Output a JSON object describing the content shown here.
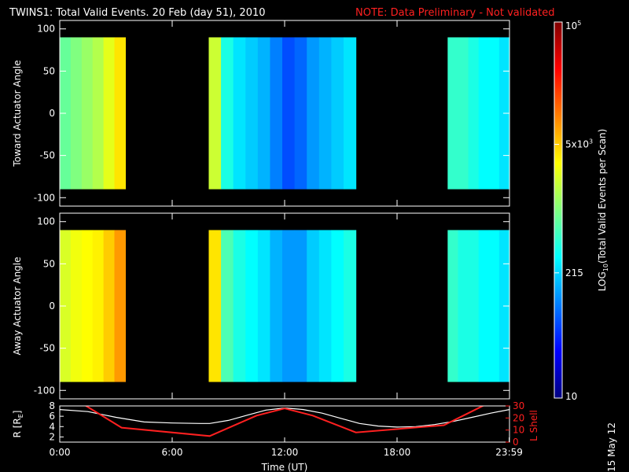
{
  "title": "TWINS1: Total Valid Events. 20 Feb (day  51), 2010",
  "note": "NOTE: Data Preliminary - Not validated",
  "date_stamp": "15 May 12",
  "colors": {
    "background": "#000000",
    "note": "#ff2020",
    "r_line": "#ffffff",
    "l_line": "#ff2020"
  },
  "chart_data": [
    {
      "type": "heatmap",
      "name": "toward",
      "ylabel": "Toward Actuator Angle",
      "ylim": [
        -110,
        110
      ],
      "yticks": [
        100,
        50,
        0,
        -50,
        -100
      ],
      "xlim": [
        0,
        24
      ],
      "data_angle_range": [
        -90,
        90
      ],
      "blocks": [
        {
          "start": 0.0,
          "end": 3.5,
          "log_profile": [
            2.9,
            3.0,
            3.1,
            3.2,
            3.4,
            3.6
          ]
        },
        {
          "start": 7.95,
          "end": 15.8,
          "log_profile": [
            3.3,
            2.6,
            2.4,
            2.3,
            2.2,
            2.0,
            1.8,
            1.9,
            2.1,
            2.2,
            2.3,
            2.4
          ]
        },
        {
          "start": 20.7,
          "end": 24.0,
          "log_profile": [
            2.7,
            2.7,
            2.6,
            2.5,
            2.5,
            2.4
          ]
        }
      ]
    },
    {
      "type": "heatmap",
      "name": "away",
      "ylabel": "Away Actuator Angle",
      "ylim": [
        -110,
        110
      ],
      "yticks": [
        100,
        50,
        0,
        -50,
        -100
      ],
      "xlim": [
        0,
        24
      ],
      "data_angle_range": [
        -90,
        90
      ],
      "blocks": [
        {
          "start": 0.0,
          "end": 3.5,
          "log_profile": [
            3.35,
            3.45,
            3.5,
            3.55,
            3.7,
            3.9
          ]
        },
        {
          "start": 7.95,
          "end": 15.8,
          "log_profile": [
            3.6,
            2.8,
            2.6,
            2.5,
            2.4,
            2.2,
            2.1,
            2.1,
            2.3,
            2.4,
            2.5,
            2.6
          ]
        },
        {
          "start": 20.7,
          "end": 24.0,
          "log_profile": [
            2.7,
            2.6,
            2.6,
            2.5,
            2.5,
            2.4
          ]
        }
      ]
    },
    {
      "type": "line",
      "name": "orbit",
      "ylabel_left": "R [R",
      "ylabel_left_sub": "E",
      "ylabel_left_end": "]",
      "ylabel_right": "L Shell",
      "ylim_left": [
        1,
        8
      ],
      "yticks_left": [
        8,
        6,
        4,
        2
      ],
      "ylim_right": [
        0,
        30
      ],
      "yticks_right": [
        30,
        20,
        10,
        0
      ],
      "xlabel": "Time (UT)",
      "xticks": [
        {
          "value": 0,
          "label": "0:00"
        },
        {
          "value": 6,
          "label": "6:00"
        },
        {
          "value": 12,
          "label": "12:00"
        },
        {
          "value": 18,
          "label": "18:00"
        },
        {
          "value": 23.983,
          "label": "23:59"
        }
      ],
      "series": [
        {
          "axis": "left",
          "color": "#ffffff",
          "x": [
            0,
            1.5,
            3,
            4.5,
            6,
            7.5,
            8,
            9,
            10,
            11,
            12,
            13,
            14,
            15,
            16,
            17,
            18,
            19,
            20,
            21,
            22,
            23,
            24
          ],
          "y": [
            7.3,
            6.9,
            5.8,
            4.9,
            4.7,
            4.6,
            4.6,
            5.2,
            6.2,
            7.2,
            7.6,
            7.3,
            6.6,
            5.6,
            4.6,
            4.1,
            3.9,
            4.0,
            4.4,
            5.0,
            5.8,
            6.6,
            7.3
          ]
        },
        {
          "axis": "right",
          "color": "#ff2020",
          "x": [
            1.3,
            3.3,
            8,
            10.5,
            12,
            13.5,
            15.8,
            20.5,
            21.8,
            22.7
          ],
          "y": [
            31,
            12,
            5,
            22,
            28,
            22,
            8,
            14,
            24,
            31
          ]
        }
      ]
    }
  ],
  "colorbar": {
    "label": "LOG",
    "label_sub": "10",
    "label_end": "(Total Valid  Events per Scan)",
    "ticks": [
      {
        "log": 5,
        "base": "10",
        "exp": "5"
      },
      {
        "log": 3.699,
        "base": "5x10",
        "exp": "3"
      },
      {
        "log": 2.332,
        "base": "215",
        "exp": ""
      },
      {
        "log": 1,
        "base": "10",
        "exp": ""
      }
    ],
    "range_log": [
      1,
      5
    ]
  }
}
